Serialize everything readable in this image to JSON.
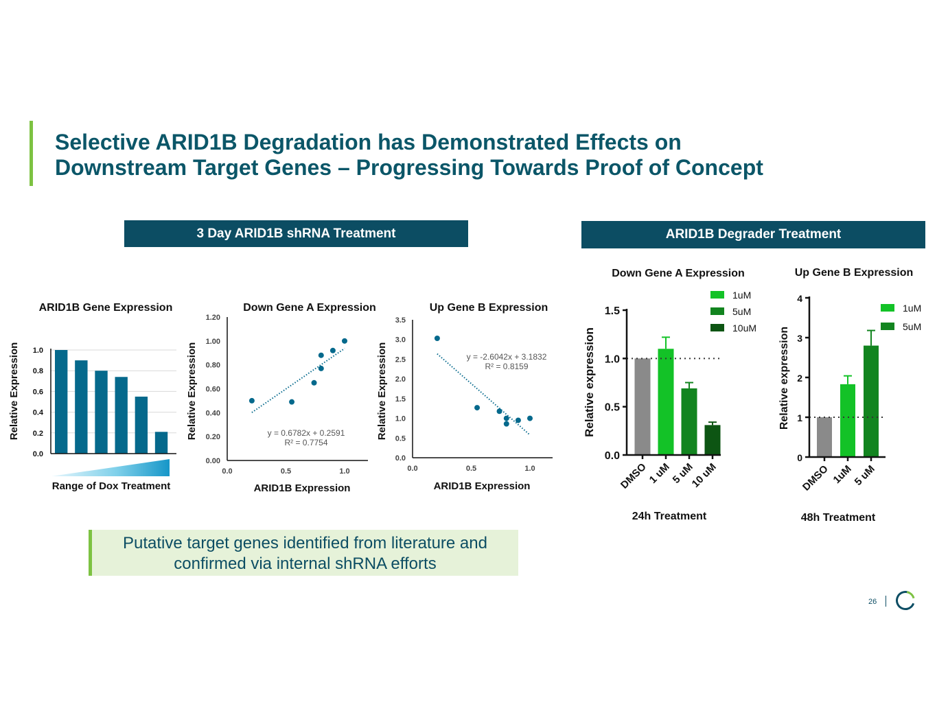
{
  "slide": {
    "title_line1": "Selective ARID1B Degradation has Demonstrated Effects on",
    "title_line2": "Downstream Target Genes – Progressing Towards Proof of Concept",
    "banner_left": "3 Day ARID1B shRNA Treatment",
    "banner_right": "ARID1B Degrader Treatment",
    "callout_line1": "Putative target genes identified from literature and",
    "callout_line2": "confirmed via internal shRNA efforts",
    "page_number": "26",
    "colors": {
      "title": "#0b5668",
      "banner": "#0c4d63",
      "accent": "#7dc242",
      "bar": "#05698c",
      "callout_bg": "#e6f2d9"
    }
  },
  "chart_data": [
    {
      "id": "gene-expression",
      "type": "bar",
      "title": "ARID1B Gene Expression",
      "ylabel": "Relative  Expression",
      "xlabel": "Range of Dox Treatment",
      "ylim": [
        0,
        1.0
      ],
      "yticks": [
        "0.0",
        "0.2",
        "0.4",
        "0.6",
        "0.8",
        "1.0"
      ],
      "values": [
        1.0,
        0.9,
        0.8,
        0.74,
        0.55,
        0.21
      ],
      "color": "#05698c"
    },
    {
      "id": "down-gene-a-scatter",
      "type": "scatter",
      "title": "Down Gene A Expression",
      "ylabel": "Relative  Expression",
      "xlabel": "ARID1B Expression",
      "xlim": [
        0,
        1.2
      ],
      "ylim": [
        0,
        1.2
      ],
      "xticks": [
        "0.0",
        "0.5",
        "1.0"
      ],
      "yticks": [
        "0.00",
        "0.20",
        "0.40",
        "0.60",
        "0.80",
        "1.00",
        "1.20"
      ],
      "points": [
        [
          0.21,
          0.5
        ],
        [
          0.55,
          0.49
        ],
        [
          0.74,
          0.65
        ],
        [
          0.8,
          0.77
        ],
        [
          0.8,
          0.88
        ],
        [
          0.9,
          0.92
        ],
        [
          1.0,
          1.0
        ]
      ],
      "trendline": {
        "slope": 0.6782,
        "intercept": 0.2591,
        "x": [
          0.21,
          1.0
        ]
      },
      "equation": "y = 0.6782x + 0.2591",
      "r2": "R² = 0.7754",
      "color": "#05698c"
    },
    {
      "id": "up-gene-b-scatter",
      "type": "scatter",
      "title": "Up Gene B Expression",
      "ylabel": "Relative  Expression",
      "xlabel": "ARID1B Expression",
      "xlim": [
        0,
        1.2
      ],
      "ylim": [
        0,
        3.5
      ],
      "xticks": [
        "0.0",
        "0.5",
        "1.0"
      ],
      "yticks": [
        "0.0",
        "0.5",
        "1.0",
        "1.5",
        "2.0",
        "2.5",
        "3.0",
        "3.5"
      ],
      "points": [
        [
          0.21,
          3.03
        ],
        [
          0.55,
          1.27
        ],
        [
          0.74,
          1.18
        ],
        [
          0.8,
          1.0
        ],
        [
          0.8,
          0.86
        ],
        [
          0.9,
          0.95
        ],
        [
          1.0,
          1.0
        ]
      ],
      "trendline": {
        "slope": -2.6042,
        "intercept": 3.1832,
        "x": [
          0.21,
          1.0
        ]
      },
      "equation": "y = -2.6042x + 3.1832",
      "r2": "R² = 0.8159",
      "color": "#05698c"
    },
    {
      "id": "degrader-24h",
      "type": "bar",
      "title": "Down Gene A Expression",
      "ylabel": "Relative expression",
      "xlabel": "24h Treatment",
      "ylim": [
        0,
        1.5
      ],
      "yticks": [
        "0.0",
        "0.5",
        "1.0",
        "1.5"
      ],
      "categories": [
        "DMSO",
        "1 uM",
        "5 uM",
        "10 uM"
      ],
      "values": [
        1.0,
        1.1,
        0.69,
        0.31
      ],
      "errors": [
        0,
        0.12,
        0.06,
        0.03
      ],
      "colors": [
        "#8a8a8a",
        "#13c227",
        "#12841f",
        "#0d5513"
      ],
      "legend": [
        {
          "label": "1uM",
          "color": "#13c227"
        },
        {
          "label": "5uM",
          "color": "#12841f"
        },
        {
          "label": "10uM",
          "color": "#0d5513"
        }
      ],
      "reference_line": 1.0
    },
    {
      "id": "degrader-48h",
      "type": "bar",
      "title": "Up Gene B Expression",
      "ylabel": "Relative expression",
      "xlabel": "48h Treatment",
      "ylim": [
        0,
        4
      ],
      "yticks": [
        "0",
        "1",
        "2",
        "3",
        "4"
      ],
      "categories": [
        "DMSO",
        "1uM",
        "5 uM"
      ],
      "values": [
        1.0,
        1.83,
        2.8
      ],
      "errors": [
        0,
        0.21,
        0.38
      ],
      "colors": [
        "#8a8a8a",
        "#13c227",
        "#12841f"
      ],
      "legend": [
        {
          "label": "1uM",
          "color": "#13c227"
        },
        {
          "label": "5uM",
          "color": "#12841f"
        }
      ],
      "reference_line": 1.0
    }
  ]
}
